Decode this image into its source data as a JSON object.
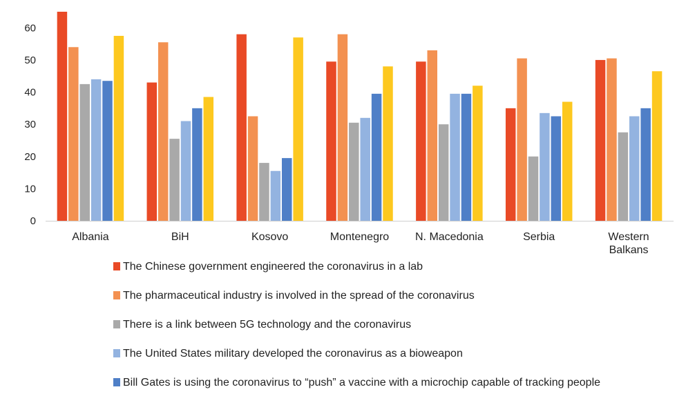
{
  "chart_data": {
    "type": "bar",
    "title": "",
    "xlabel": "",
    "ylabel": "",
    "ylim": [
      0,
      65
    ],
    "yticks": [
      0,
      10,
      20,
      30,
      40,
      50,
      60
    ],
    "categories": [
      "Albania",
      "BiH",
      "Kosovo",
      "Montenegro",
      "N. Macedonia",
      "Serbia",
      "Western Balkans"
    ],
    "series": [
      {
        "name": "The Chinese government engineered the coronavirus in a lab",
        "color": "#e94a26",
        "values": [
          65,
          43,
          58,
          49.5,
          49.5,
          35,
          50
        ]
      },
      {
        "name": "The pharmaceutical industry is involved in the spread of the coronavirus",
        "color": "#f39151",
        "values": [
          54,
          55.5,
          32.5,
          58,
          53,
          50.5,
          50.5
        ]
      },
      {
        "name": "There is a link between 5G technology and the coronavirus",
        "color": "#a9a9a9",
        "values": [
          42.5,
          25.5,
          18,
          30.5,
          30,
          20,
          27.5
        ]
      },
      {
        "name": "The United States military developed the coronavirus as a bioweapon",
        "color": "#93b3e0",
        "values": [
          44,
          31,
          15.5,
          32,
          39.5,
          33.5,
          32.5
        ]
      },
      {
        "name": "Bill Gates is using the coronavirus to “push” a vaccine with a microchip capable of tracking people",
        "color": "#4f7fc7",
        "values": [
          43.5,
          35,
          19.5,
          39.5,
          39.5,
          32.5,
          35
        ]
      },
      {
        "name": "",
        "color": "#fdc81f",
        "values": [
          57.5,
          38.5,
          57,
          48,
          42,
          37,
          46.5
        ]
      }
    ],
    "legend_position": "bottom",
    "grid": false
  }
}
